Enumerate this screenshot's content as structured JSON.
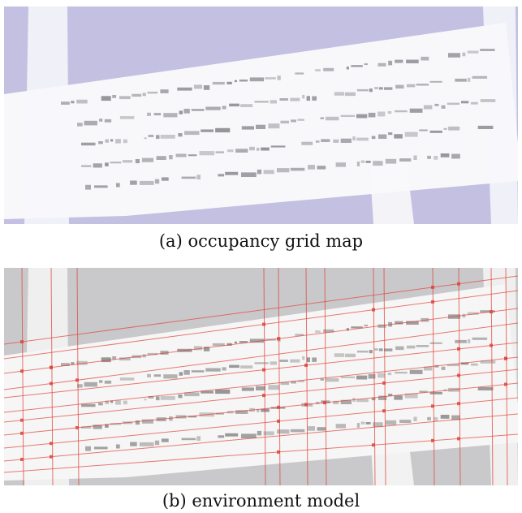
{
  "figure": {
    "subfigures": [
      {
        "caption": "(a) occupancy grid map",
        "colors": {
          "unknown": "#c4c0e2",
          "free": "#f8f8fb",
          "occupied": "#8e8e94"
        }
      },
      {
        "caption": "(b) environment model",
        "colors": {
          "unknown": "#c9c9cb",
          "free": "#f6f6f6",
          "occupied": "#8f8f8f",
          "boundary_lines": "#e0443a"
        }
      }
    ]
  }
}
